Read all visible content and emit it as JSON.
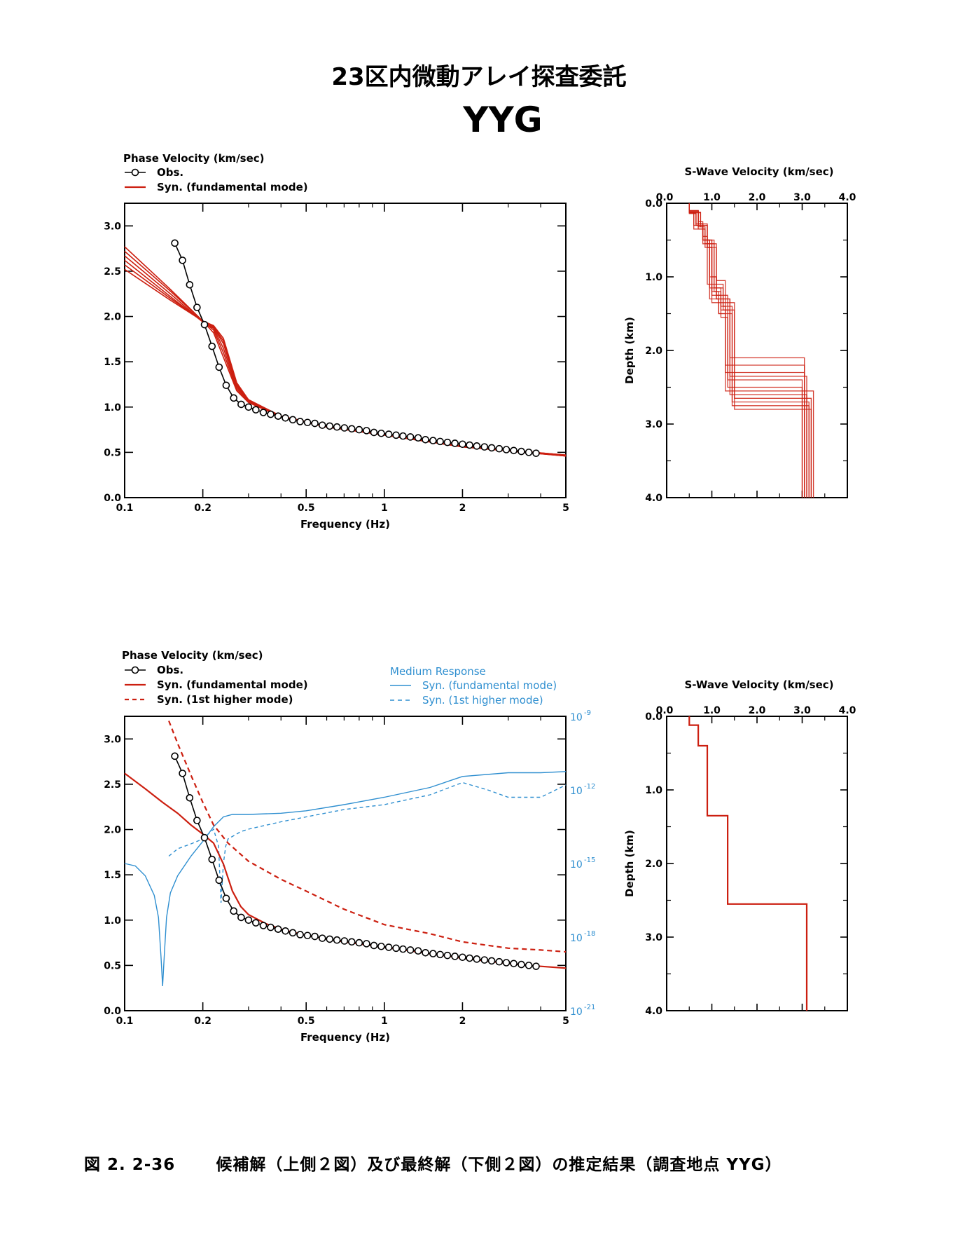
{
  "header": {
    "title": "23区内微動アレイ探査委託",
    "site": "YYG"
  },
  "caption": {
    "number": "図 2. 2-36",
    "text": "候補解（上側２図）及び最終解（下側２図）の推定結果（調査地点 YYG）"
  },
  "colors": {
    "obs": "#000000",
    "syn": "#cc1f10",
    "medium": "#2f8fd0"
  },
  "chart_data": [
    {
      "id": "top-phase",
      "type": "line",
      "title": "Phase Velocity (km/sec)",
      "xlabel": "Frequency (Hz)",
      "x_scale": "log",
      "xlim": [
        0.1,
        5
      ],
      "ylim": [
        0,
        3.25
      ],
      "x_ticks": [
        "0.1",
        "0.2",
        "0.5",
        "1",
        "2",
        "5"
      ],
      "y_ticks": [
        "0.0",
        "0.5",
        "1.0",
        "1.5",
        "2.0",
        "2.5",
        "3.0"
      ],
      "legend": [
        {
          "label": "Obs.",
          "style": "obs"
        },
        {
          "label": "Syn. (fundamental mode)",
          "style": "syn"
        }
      ],
      "obs": {
        "x": [
          0.156,
          0.167,
          0.178,
          0.19,
          0.203,
          0.217,
          0.231,
          0.246,
          0.263,
          0.281,
          0.3,
          0.32,
          0.342,
          0.365,
          0.39,
          0.416,
          0.444,
          0.474,
          0.506,
          0.54,
          0.577,
          0.616,
          0.657,
          0.702,
          0.749,
          0.8,
          0.854,
          0.912,
          0.973,
          1.04,
          1.11,
          1.18,
          1.26,
          1.35,
          1.44,
          1.54,
          1.64,
          1.75,
          1.87,
          2.0,
          2.13,
          2.27,
          2.43,
          2.59,
          2.77,
          2.95,
          3.15,
          3.37,
          3.6,
          3.84
        ],
        "y": [
          2.81,
          2.62,
          2.35,
          2.1,
          1.91,
          1.67,
          1.44,
          1.24,
          1.1,
          1.03,
          1.0,
          0.97,
          0.94,
          0.92,
          0.9,
          0.88,
          0.86,
          0.84,
          0.83,
          0.82,
          0.8,
          0.79,
          0.78,
          0.77,
          0.76,
          0.75,
          0.74,
          0.72,
          0.71,
          0.7,
          0.69,
          0.68,
          0.67,
          0.66,
          0.64,
          0.63,
          0.62,
          0.61,
          0.6,
          0.59,
          0.58,
          0.57,
          0.56,
          0.55,
          0.54,
          0.53,
          0.52,
          0.51,
          0.5,
          0.49
        ]
      },
      "syn_candidates": [
        {
          "x": [
            0.1,
            0.15,
            0.2,
            0.22,
            0.24,
            0.27,
            0.3,
            0.4,
            0.6,
            1,
            2,
            5
          ],
          "y": [
            2.77,
            2.3,
            1.95,
            1.82,
            1.55,
            1.18,
            1.05,
            0.89,
            0.78,
            0.69,
            0.56,
            0.46
          ]
        },
        {
          "x": [
            0.1,
            0.15,
            0.2,
            0.22,
            0.24,
            0.27,
            0.3,
            0.4,
            0.6,
            1,
            2,
            5
          ],
          "y": [
            2.72,
            2.28,
            1.95,
            1.85,
            1.6,
            1.2,
            1.06,
            0.9,
            0.78,
            0.7,
            0.56,
            0.47
          ]
        },
        {
          "x": [
            0.1,
            0.15,
            0.2,
            0.22,
            0.24,
            0.27,
            0.3,
            0.4,
            0.6,
            1,
            2,
            5
          ],
          "y": [
            2.67,
            2.25,
            1.94,
            1.87,
            1.65,
            1.22,
            1.07,
            0.9,
            0.79,
            0.7,
            0.57,
            0.47
          ]
        },
        {
          "x": [
            0.1,
            0.15,
            0.2,
            0.22,
            0.24,
            0.27,
            0.3,
            0.4,
            0.6,
            1,
            2,
            5
          ],
          "y": [
            2.62,
            2.22,
            1.94,
            1.88,
            1.7,
            1.24,
            1.07,
            0.89,
            0.78,
            0.7,
            0.57,
            0.46
          ]
        },
        {
          "x": [
            0.1,
            0.15,
            0.2,
            0.22,
            0.24,
            0.27,
            0.3,
            0.4,
            0.6,
            1,
            2,
            5
          ],
          "y": [
            2.57,
            2.2,
            1.95,
            1.89,
            1.73,
            1.25,
            1.08,
            0.9,
            0.78,
            0.69,
            0.56,
            0.46
          ]
        },
        {
          "x": [
            0.1,
            0.15,
            0.2,
            0.22,
            0.24,
            0.27,
            0.3,
            0.4,
            0.6,
            1,
            2,
            5
          ],
          "y": [
            2.52,
            2.18,
            1.95,
            1.9,
            1.76,
            1.27,
            1.08,
            0.9,
            0.79,
            0.7,
            0.57,
            0.47
          ]
        }
      ]
    },
    {
      "id": "top-swave",
      "type": "line",
      "title": "S-Wave Velocity (km/sec)",
      "ylabel": "Depth (km)",
      "xlim": [
        0,
        4.0
      ],
      "ylim": [
        4.0,
        0
      ],
      "x_ticks": [
        "0.0",
        "1.0",
        "2.0",
        "3.0",
        "4.0"
      ],
      "y_ticks": [
        "0.0",
        "1.0",
        "2.0",
        "3.0",
        "4.0"
      ],
      "profiles": [
        {
          "v": [
            0.5,
            0.65,
            0.8,
            0.9,
            1.0,
            1.3,
            3.05
          ],
          "z": [
            0.12,
            0.3,
            0.45,
            1.1,
            1.35,
            2.3,
            4.0
          ]
        },
        {
          "v": [
            0.5,
            0.7,
            0.8,
            0.95,
            1.1,
            1.35,
            3.0
          ],
          "z": [
            0.1,
            0.25,
            0.5,
            1.0,
            1.25,
            2.4,
            4.0
          ]
        },
        {
          "v": [
            0.5,
            0.6,
            0.85,
            1.0,
            1.2,
            1.4,
            3.1
          ],
          "z": [
            0.12,
            0.35,
            0.6,
            1.2,
            1.45,
            2.6,
            4.0
          ]
        },
        {
          "v": [
            0.5,
            0.7,
            0.9,
            1.05,
            1.25,
            1.45,
            3.15
          ],
          "z": [
            0.1,
            0.3,
            0.55,
            1.15,
            1.4,
            2.7,
            4.0
          ]
        },
        {
          "v": [
            0.5,
            0.65,
            0.8,
            0.95,
            1.15,
            1.3,
            3.05
          ],
          "z": [
            0.14,
            0.28,
            0.5,
            1.3,
            1.5,
            2.2,
            4.0
          ]
        },
        {
          "v": [
            0.5,
            0.75,
            0.85,
            1.1,
            1.3,
            1.5,
            3.2
          ],
          "z": [
            0.12,
            0.32,
            0.55,
            1.05,
            1.35,
            2.8,
            4.0
          ]
        },
        {
          "v": [
            0.5,
            0.7,
            0.8,
            1.0,
            1.2,
            1.35,
            3.0
          ],
          "z": [
            0.1,
            0.28,
            0.5,
            1.25,
            1.55,
            2.5,
            4.0
          ]
        },
        {
          "v": [
            0.5,
            0.65,
            0.9,
            1.0,
            1.25,
            1.4,
            3.1
          ],
          "z": [
            0.13,
            0.3,
            0.6,
            1.1,
            1.3,
            2.35,
            4.0
          ]
        },
        {
          "v": [
            0.5,
            0.7,
            0.85,
            1.05,
            1.15,
            1.45,
            3.15
          ],
          "z": [
            0.11,
            0.35,
            0.5,
            1.2,
            1.5,
            2.75,
            4.0
          ]
        },
        {
          "v": [
            0.5,
            0.6,
            0.8,
            0.95,
            1.2,
            1.3,
            3.25
          ],
          "z": [
            0.12,
            0.3,
            0.55,
            1.15,
            1.4,
            2.55,
            4.0
          ]
        },
        {
          "v": [
            0.5,
            0.7,
            0.8,
            1.0,
            1.1,
            1.4,
            3.05
          ],
          "z": [
            0.1,
            0.32,
            0.5,
            1.0,
            1.3,
            2.1,
            4.0
          ]
        },
        {
          "v": [
            0.5,
            0.75,
            0.9,
            1.1,
            1.25,
            1.5,
            3.2
          ],
          "z": [
            0.13,
            0.28,
            0.6,
            1.3,
            1.45,
            2.65,
            4.0
          ]
        }
      ]
    },
    {
      "id": "bottom-phase",
      "type": "line",
      "title": "Phase Velocity (km/sec)",
      "xlabel": "Frequency (Hz)",
      "x_scale": "log",
      "xlim": [
        0.1,
        5
      ],
      "ylim": [
        0,
        3.25
      ],
      "y2_scale": "log",
      "y2lim": [
        1e-21,
        1e-09
      ],
      "x_ticks": [
        "0.1",
        "0.2",
        "0.5",
        "1",
        "2",
        "5"
      ],
      "y_ticks": [
        "0.0",
        "0.5",
        "1.0",
        "1.5",
        "2.0",
        "2.5",
        "3.0"
      ],
      "y2_ticks": [
        "10",
        "10",
        "10",
        "10",
        "10"
      ],
      "y2_exponents": [
        "-9",
        "-12",
        "-15",
        "-18",
        "-21"
      ],
      "legend": [
        {
          "label": "Obs.",
          "style": "obs"
        },
        {
          "label": "Syn. (fundamental mode)",
          "style": "syn"
        },
        {
          "label": "Syn. (1st higher mode)",
          "style": "syn-dash"
        }
      ],
      "legend2_title": "Medium Response",
      "legend2": [
        {
          "label": "Syn. (fundamental mode)",
          "style": "medium"
        },
        {
          "label": "Syn. (1st higher mode)",
          "style": "medium-dash"
        }
      ],
      "obs_ref": "top-phase",
      "series": [
        {
          "name": "Syn. (fundamental mode)",
          "x": [
            0.1,
            0.12,
            0.14,
            0.16,
            0.18,
            0.2,
            0.22,
            0.24,
            0.26,
            0.28,
            0.3,
            0.35,
            0.4,
            0.5,
            0.7,
            1,
            1.5,
            2,
            3,
            4,
            5
          ],
          "y": [
            2.62,
            2.45,
            2.3,
            2.18,
            2.05,
            1.95,
            1.85,
            1.62,
            1.32,
            1.15,
            1.06,
            0.96,
            0.9,
            0.83,
            0.76,
            0.7,
            0.63,
            0.58,
            0.52,
            0.49,
            0.47
          ]
        },
        {
          "name": "Syn. (1st higher mode)",
          "x": [
            0.148,
            0.16,
            0.18,
            0.2,
            0.22,
            0.25,
            0.3,
            0.4,
            0.5,
            0.7,
            1,
            1.5,
            2,
            3,
            4,
            5
          ],
          "y": [
            3.2,
            2.95,
            2.6,
            2.3,
            2.05,
            1.85,
            1.65,
            1.45,
            1.32,
            1.12,
            0.95,
            0.85,
            0.76,
            0.69,
            0.67,
            0.65
          ]
        }
      ],
      "medium_response": [
        {
          "name": "Syn. (fundamental mode)",
          "x": [
            0.1,
            0.11,
            0.12,
            0.13,
            0.135,
            0.138,
            0.14,
            0.142,
            0.145,
            0.15,
            0.16,
            0.18,
            0.2,
            0.22,
            0.24,
            0.26,
            0.3,
            0.4,
            0.5,
            0.7,
            1,
            1.5,
            2,
            3,
            4,
            5
          ],
          "y_log10": [
            -15.0,
            -15.1,
            -15.5,
            -16.3,
            -17.2,
            -18.8,
            -20.0,
            -18.8,
            -17.2,
            -16.2,
            -15.5,
            -14.7,
            -14.1,
            -13.5,
            -13.1,
            -13.0,
            -13.0,
            -12.95,
            -12.85,
            -12.6,
            -12.3,
            -11.9,
            -11.45,
            -11.3,
            -11.3,
            -11.25
          ]
        },
        {
          "name": "Syn. (1st higher mode)",
          "x": [
            0.148,
            0.16,
            0.18,
            0.2,
            0.22,
            0.23,
            0.235,
            0.24,
            0.245,
            0.25,
            0.28,
            0.3,
            0.4,
            0.5,
            0.7,
            1,
            1.5,
            2,
            2.5,
            3,
            4,
            5
          ],
          "y_log10": [
            -14.7,
            -14.4,
            -14.2,
            -14.0,
            -13.6,
            -14.3,
            -16.6,
            -15.0,
            -14.3,
            -14.0,
            -13.7,
            -13.6,
            -13.3,
            -13.1,
            -12.8,
            -12.6,
            -12.2,
            -11.7,
            -12.0,
            -12.3,
            -12.3,
            -11.8
          ]
        }
      ]
    },
    {
      "id": "bottom-swave",
      "type": "line",
      "title": "S-Wave Velocity (km/sec)",
      "ylabel": "Depth (km)",
      "xlim": [
        0,
        4.0
      ],
      "ylim": [
        4.0,
        0
      ],
      "x_ticks": [
        "0.0",
        "1.0",
        "2.0",
        "3.0",
        "4.0"
      ],
      "y_ticks": [
        "0.0",
        "1.0",
        "2.0",
        "3.0",
        "4.0"
      ],
      "profiles": [
        {
          "v": [
            0.5,
            0.7,
            0.9,
            1.35,
            3.1
          ],
          "z": [
            0.12,
            0.4,
            1.35,
            2.55,
            4.0
          ]
        }
      ]
    }
  ]
}
